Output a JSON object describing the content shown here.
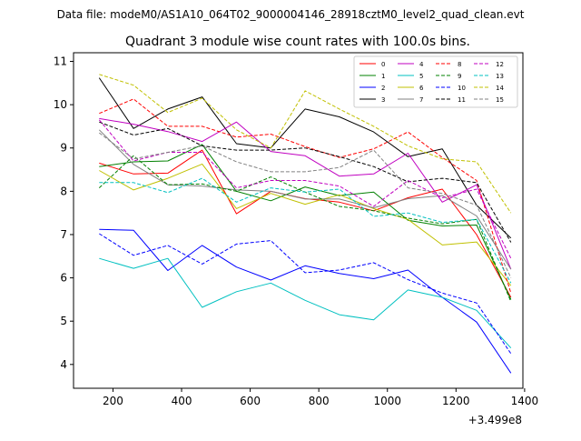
{
  "suptitle": "Data file: modeM0/AS1A10_064T02_9000004146_28918cztM0_level2_quad_clean.evt",
  "chart_data": {
    "type": "line",
    "title": "Quadrant 3 module wise count rates with 100.0s bins.",
    "xlabel": "",
    "ylabel": "",
    "x_offset_label": "+3.499e8",
    "x": [
      160,
      260,
      360,
      460,
      560,
      660,
      760,
      860,
      960,
      1060,
      1160,
      1260,
      1360
    ],
    "xlim": [
      85,
      1395
    ],
    "ylim": [
      3.45,
      11.2
    ],
    "xticks": [
      200,
      400,
      600,
      800,
      1000,
      1200,
      1400
    ],
    "xtick_labels": [
      "200",
      "400",
      "600",
      "800",
      "1000",
      "1200",
      "1400"
    ],
    "yticks": [
      4,
      5,
      6,
      7,
      8,
      9,
      10,
      11
    ],
    "ytick_labels": [
      "4",
      "5",
      "6",
      "7",
      "8",
      "9",
      "10",
      "11"
    ],
    "grid": false,
    "legend_placement": "top-right",
    "legend_columns": 4,
    "series": [
      {
        "name": "0",
        "color": "#ff0000",
        "dash": "solid",
        "values": [
          8.65,
          8.4,
          8.42,
          8.95,
          7.48,
          8.0,
          7.83,
          7.75,
          7.55,
          7.85,
          8.05,
          7.0,
          5.55
        ]
      },
      {
        "name": "1",
        "color": "#008000",
        "dash": "solid",
        "values": [
          8.57,
          8.68,
          8.7,
          9.08,
          8.0,
          7.78,
          8.1,
          7.9,
          7.98,
          7.33,
          7.2,
          7.22,
          5.5
        ]
      },
      {
        "name": "2",
        "color": "#0000ff",
        "dash": "solid",
        "values": [
          7.12,
          7.1,
          6.17,
          6.75,
          6.25,
          5.95,
          6.28,
          6.1,
          5.98,
          6.18,
          5.55,
          4.98,
          3.8
        ]
      },
      {
        "name": "3",
        "color": "#000000",
        "dash": "solid",
        "values": [
          10.62,
          9.45,
          9.9,
          10.18,
          9.1,
          9.0,
          9.9,
          9.72,
          9.37,
          8.8,
          8.98,
          7.68,
          6.92
        ]
      },
      {
        "name": "4",
        "color": "#c000c0",
        "dash": "solid",
        "values": [
          9.68,
          9.55,
          9.38,
          9.15,
          9.6,
          8.92,
          8.82,
          8.35,
          8.4,
          8.88,
          7.75,
          8.15,
          6.2
        ]
      },
      {
        "name": "5",
        "color": "#00c0c0",
        "dash": "solid",
        "values": [
          6.45,
          6.22,
          6.45,
          5.32,
          5.68,
          5.88,
          5.48,
          5.15,
          5.03,
          5.72,
          5.55,
          5.25,
          4.38
        ]
      },
      {
        "name": "6",
        "color": "#c0c000",
        "dash": "solid",
        "values": [
          8.48,
          8.03,
          8.3,
          8.63,
          7.6,
          7.95,
          7.7,
          7.92,
          7.6,
          7.35,
          6.76,
          6.83,
          5.82
        ]
      },
      {
        "name": "7",
        "color": "#808080",
        "dash": "solid",
        "values": [
          9.42,
          8.62,
          8.15,
          8.12,
          8.03,
          8.0,
          7.82,
          7.82,
          7.62,
          7.83,
          7.9,
          7.43,
          6.2
        ]
      },
      {
        "name": "8",
        "color": "#ff0000",
        "dash": "dashed",
        "values": [
          9.8,
          10.13,
          9.5,
          9.5,
          9.25,
          9.32,
          9.03,
          8.78,
          8.98,
          9.37,
          8.78,
          8.25,
          5.65
        ]
      },
      {
        "name": "9",
        "color": "#008000",
        "dash": "dashed",
        "values": [
          8.08,
          8.82,
          8.15,
          8.17,
          8.0,
          8.33,
          7.98,
          7.65,
          7.55,
          7.38,
          7.25,
          7.35,
          5.45
        ]
      },
      {
        "name": "10",
        "color": "#0000ff",
        "dash": "dashed",
        "values": [
          7.02,
          6.52,
          6.75,
          6.32,
          6.78,
          6.86,
          6.12,
          6.18,
          6.35,
          5.96,
          5.65,
          5.42,
          4.25
        ]
      },
      {
        "name": "11",
        "color": "#000000",
        "dash": "dashed",
        "values": [
          9.6,
          9.3,
          9.45,
          9.05,
          8.95,
          8.95,
          9.0,
          8.8,
          8.57,
          8.22,
          8.3,
          8.2,
          6.82
        ]
      },
      {
        "name": "12",
        "color": "#c000c0",
        "dash": "dashed",
        "values": [
          9.65,
          8.7,
          8.9,
          8.9,
          8.08,
          8.25,
          8.25,
          8.12,
          7.65,
          8.25,
          7.85,
          8.05,
          6.45
        ]
      },
      {
        "name": "13",
        "color": "#00c0c0",
        "dash": "dashed",
        "values": [
          8.2,
          8.2,
          7.97,
          8.3,
          7.75,
          8.08,
          7.98,
          8.05,
          7.42,
          7.5,
          7.28,
          7.35,
          5.88
        ]
      },
      {
        "name": "14",
        "color": "#c0c000",
        "dash": "dashed",
        "values": [
          10.7,
          10.45,
          9.82,
          10.15,
          9.42,
          9.0,
          10.32,
          9.9,
          9.5,
          9.05,
          8.75,
          8.68,
          7.5
        ]
      },
      {
        "name": "15",
        "color": "#808080",
        "dash": "dashed",
        "values": [
          9.35,
          8.75,
          8.9,
          9.05,
          8.68,
          8.45,
          8.45,
          8.55,
          8.95,
          8.08,
          7.95,
          7.68,
          6.0
        ]
      }
    ]
  }
}
